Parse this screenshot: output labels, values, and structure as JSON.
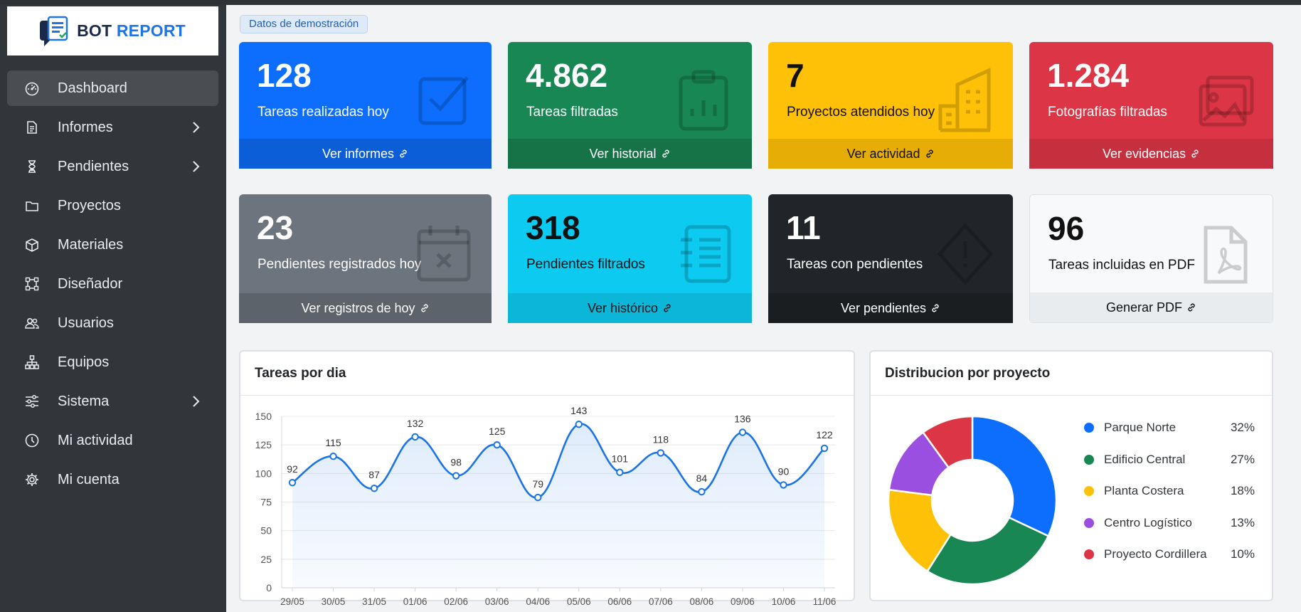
{
  "brand": {
    "part1": "BOT",
    "part2": "REPORT"
  },
  "sidebar": {
    "items": [
      {
        "label": "Dashboard",
        "icon": "speedometer-icon",
        "active": true,
        "chevron": false
      },
      {
        "label": "Informes",
        "icon": "document-icon",
        "active": false,
        "chevron": true
      },
      {
        "label": "Pendientes",
        "icon": "hourglass-icon",
        "active": false,
        "chevron": true
      },
      {
        "label": "Proyectos",
        "icon": "folder-icon",
        "active": false,
        "chevron": false
      },
      {
        "label": "Materiales",
        "icon": "box-icon",
        "active": false,
        "chevron": false
      },
      {
        "label": "Diseñador",
        "icon": "bounding-box-icon",
        "active": false,
        "chevron": false
      },
      {
        "label": "Usuarios",
        "icon": "people-icon",
        "active": false,
        "chevron": false
      },
      {
        "label": "Equipos",
        "icon": "diagram-icon",
        "active": false,
        "chevron": false
      },
      {
        "label": "Sistema",
        "icon": "sliders-icon",
        "active": false,
        "chevron": true
      },
      {
        "label": "Mi actividad",
        "icon": "clock-icon",
        "active": false,
        "chevron": false
      },
      {
        "label": "Mi cuenta",
        "icon": "gear-icon",
        "active": false,
        "chevron": false
      }
    ]
  },
  "demo_badge": "Datos de demostración",
  "cards": [
    {
      "value": "128",
      "label": "Tareas realizadas hoy",
      "link": "Ver informes",
      "icon": "check-square-icon",
      "bg": "#0d6efd",
      "foot": "#0b5ed7",
      "fg": "#ffffff"
    },
    {
      "value": "4.862",
      "label": "Tareas filtradas",
      "link": "Ver historial",
      "icon": "clipboard-chart-icon",
      "bg": "#198754",
      "foot": "#157347",
      "fg": "#ffffff"
    },
    {
      "value": "7",
      "label": "Proyectos atendidos hoy",
      "link": "Ver actividad",
      "icon": "buildings-icon",
      "bg": "#ffc107",
      "foot": "#e6ad06",
      "fg": "#111111"
    },
    {
      "value": "1.284",
      "label": "Fotografías filtradas",
      "link": "Ver evidencias",
      "icon": "images-icon",
      "bg": "#dc3545",
      "foot": "#c62f3e",
      "fg": "#ffffff"
    },
    {
      "value": "23",
      "label": "Pendientes registrados hoy",
      "link": "Ver registros de hoy",
      "icon": "calendar-x-icon",
      "bg": "#6c757d",
      "foot": "#5c636a",
      "fg": "#ffffff"
    },
    {
      "value": "318",
      "label": "Pendientes filtrados",
      "link": "Ver histórico",
      "icon": "list-journal-icon",
      "bg": "#0dcaf0",
      "foot": "#0bb6d8",
      "fg": "#111111"
    },
    {
      "value": "11",
      "label": "Tareas con pendientes",
      "link": "Ver pendientes",
      "icon": "warning-diamond-icon",
      "bg": "#212529",
      "foot": "#1b1e21",
      "fg": "#ffffff"
    },
    {
      "value": "96",
      "label": "Tareas incluidas en PDF",
      "link": "Generar PDF",
      "icon": "pdf-file-icon",
      "bg": "#f8f9fa",
      "foot": "#e9ecef",
      "fg": "#111111"
    }
  ],
  "line_panel": {
    "title": "Tareas por dia"
  },
  "donut_panel": {
    "title": "Distribucion por proyecto"
  },
  "chart_data": [
    {
      "type": "line",
      "title": "Tareas por dia",
      "categories": [
        "29/05",
        "30/05",
        "31/05",
        "01/06",
        "02/06",
        "03/06",
        "04/06",
        "05/06",
        "06/06",
        "07/06",
        "08/06",
        "09/06",
        "10/06",
        "11/06"
      ],
      "values": [
        92,
        115,
        87,
        132,
        98,
        125,
        79,
        143,
        101,
        118,
        84,
        136,
        90,
        122
      ],
      "ylim": [
        0,
        150
      ],
      "yticks": [
        0,
        25,
        50,
        75,
        100,
        125,
        150
      ],
      "color": "#1a73e8",
      "grid": true
    },
    {
      "type": "pie",
      "title": "Distribucion por proyecto",
      "labels": [
        "Parque Norte",
        "Edificio Central",
        "Planta Costera",
        "Centro Logístico",
        "Proyecto Cordillera"
      ],
      "values": [
        32,
        27,
        18,
        13,
        10
      ],
      "display": [
        "32%",
        "27%",
        "18%",
        "13%",
        "10%"
      ],
      "colors": [
        "#0d6efd",
        "#198754",
        "#ffc107",
        "#9b4fe0",
        "#dc3545"
      ],
      "legend": "right"
    }
  ]
}
